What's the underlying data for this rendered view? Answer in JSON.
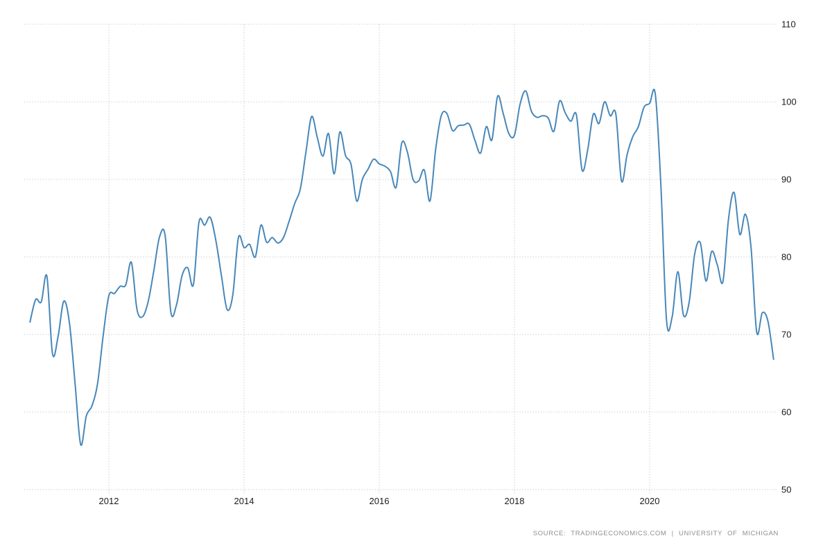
{
  "page": {
    "background": "#ffffff"
  },
  "footer": {
    "source": "SOURCE: TRADINGECONOMICS.COM | UNIVERSITY OF MICHIGAN"
  },
  "chart_data": {
    "type": "line",
    "title": "",
    "frequency": "monthly",
    "start": {
      "year": 2010,
      "month": 11
    },
    "end": {
      "year": 2021,
      "month": 11
    },
    "values": [
      71.6,
      74.5,
      74.2,
      77.5,
      67.5,
      69.8,
      74.3,
      71.5,
      63.7,
      55.8,
      59.5,
      60.8,
      63.7,
      69.9,
      75.0,
      75.3,
      76.2,
      76.4,
      79.3,
      73.2,
      72.3,
      74.3,
      78.3,
      82.6,
      82.7,
      72.9,
      73.8,
      77.6,
      78.6,
      76.4,
      84.5,
      84.1,
      85.1,
      82.1,
      77.5,
      73.2,
      75.1,
      82.5,
      81.2,
      81.6,
      80.0,
      84.1,
      81.9,
      82.5,
      81.8,
      82.5,
      84.6,
      86.9,
      88.8,
      93.6,
      98.1,
      95.4,
      93.0,
      95.9,
      90.7,
      96.1,
      93.1,
      91.9,
      87.2,
      90.0,
      91.3,
      92.6,
      92.0,
      91.7,
      91.0,
      89.0,
      94.7,
      93.5,
      90.0,
      89.8,
      91.2,
      87.2,
      93.8,
      98.2,
      98.5,
      96.3,
      96.9,
      97.0,
      97.1,
      95.0,
      93.4,
      96.8,
      95.1,
      100.7,
      98.5,
      95.9,
      95.7,
      99.7,
      101.4,
      98.8,
      98.0,
      98.2,
      97.9,
      96.2,
      100.1,
      98.6,
      97.5,
      98.3,
      91.2,
      93.8,
      98.4,
      97.2,
      100.0,
      98.2,
      98.4,
      89.8,
      93.2,
      95.5,
      96.8,
      99.3,
      99.8,
      101.0,
      89.1,
      71.8,
      72.3,
      78.1,
      72.5,
      74.1,
      80.4,
      81.8,
      76.9,
      80.7,
      79.0,
      76.8,
      84.9,
      88.3,
      82.9,
      85.5,
      81.2,
      70.3,
      72.8,
      71.7,
      66.8
    ],
    "x_axis": {
      "ticks": [
        {
          "label": "2012",
          "year": 2012
        },
        {
          "label": "2014",
          "year": 2014
        },
        {
          "label": "2016",
          "year": 2016
        },
        {
          "label": "2018",
          "year": 2018
        },
        {
          "label": "2020",
          "year": 2020
        }
      ]
    },
    "y_axis": {
      "ticks": [
        "110",
        "100",
        "90",
        "80",
        "70",
        "60",
        "50"
      ]
    },
    "ylim": [
      50,
      110
    ],
    "x_range_yearfrac": [
      2010.833,
      2021.833
    ],
    "grid": "dotted",
    "legend": "none",
    "colors": {
      "line": "#4787b9",
      "grid": "#cbcbcb",
      "tick_text": "#1b1b1b",
      "source_text": "#8f8f8f"
    }
  }
}
